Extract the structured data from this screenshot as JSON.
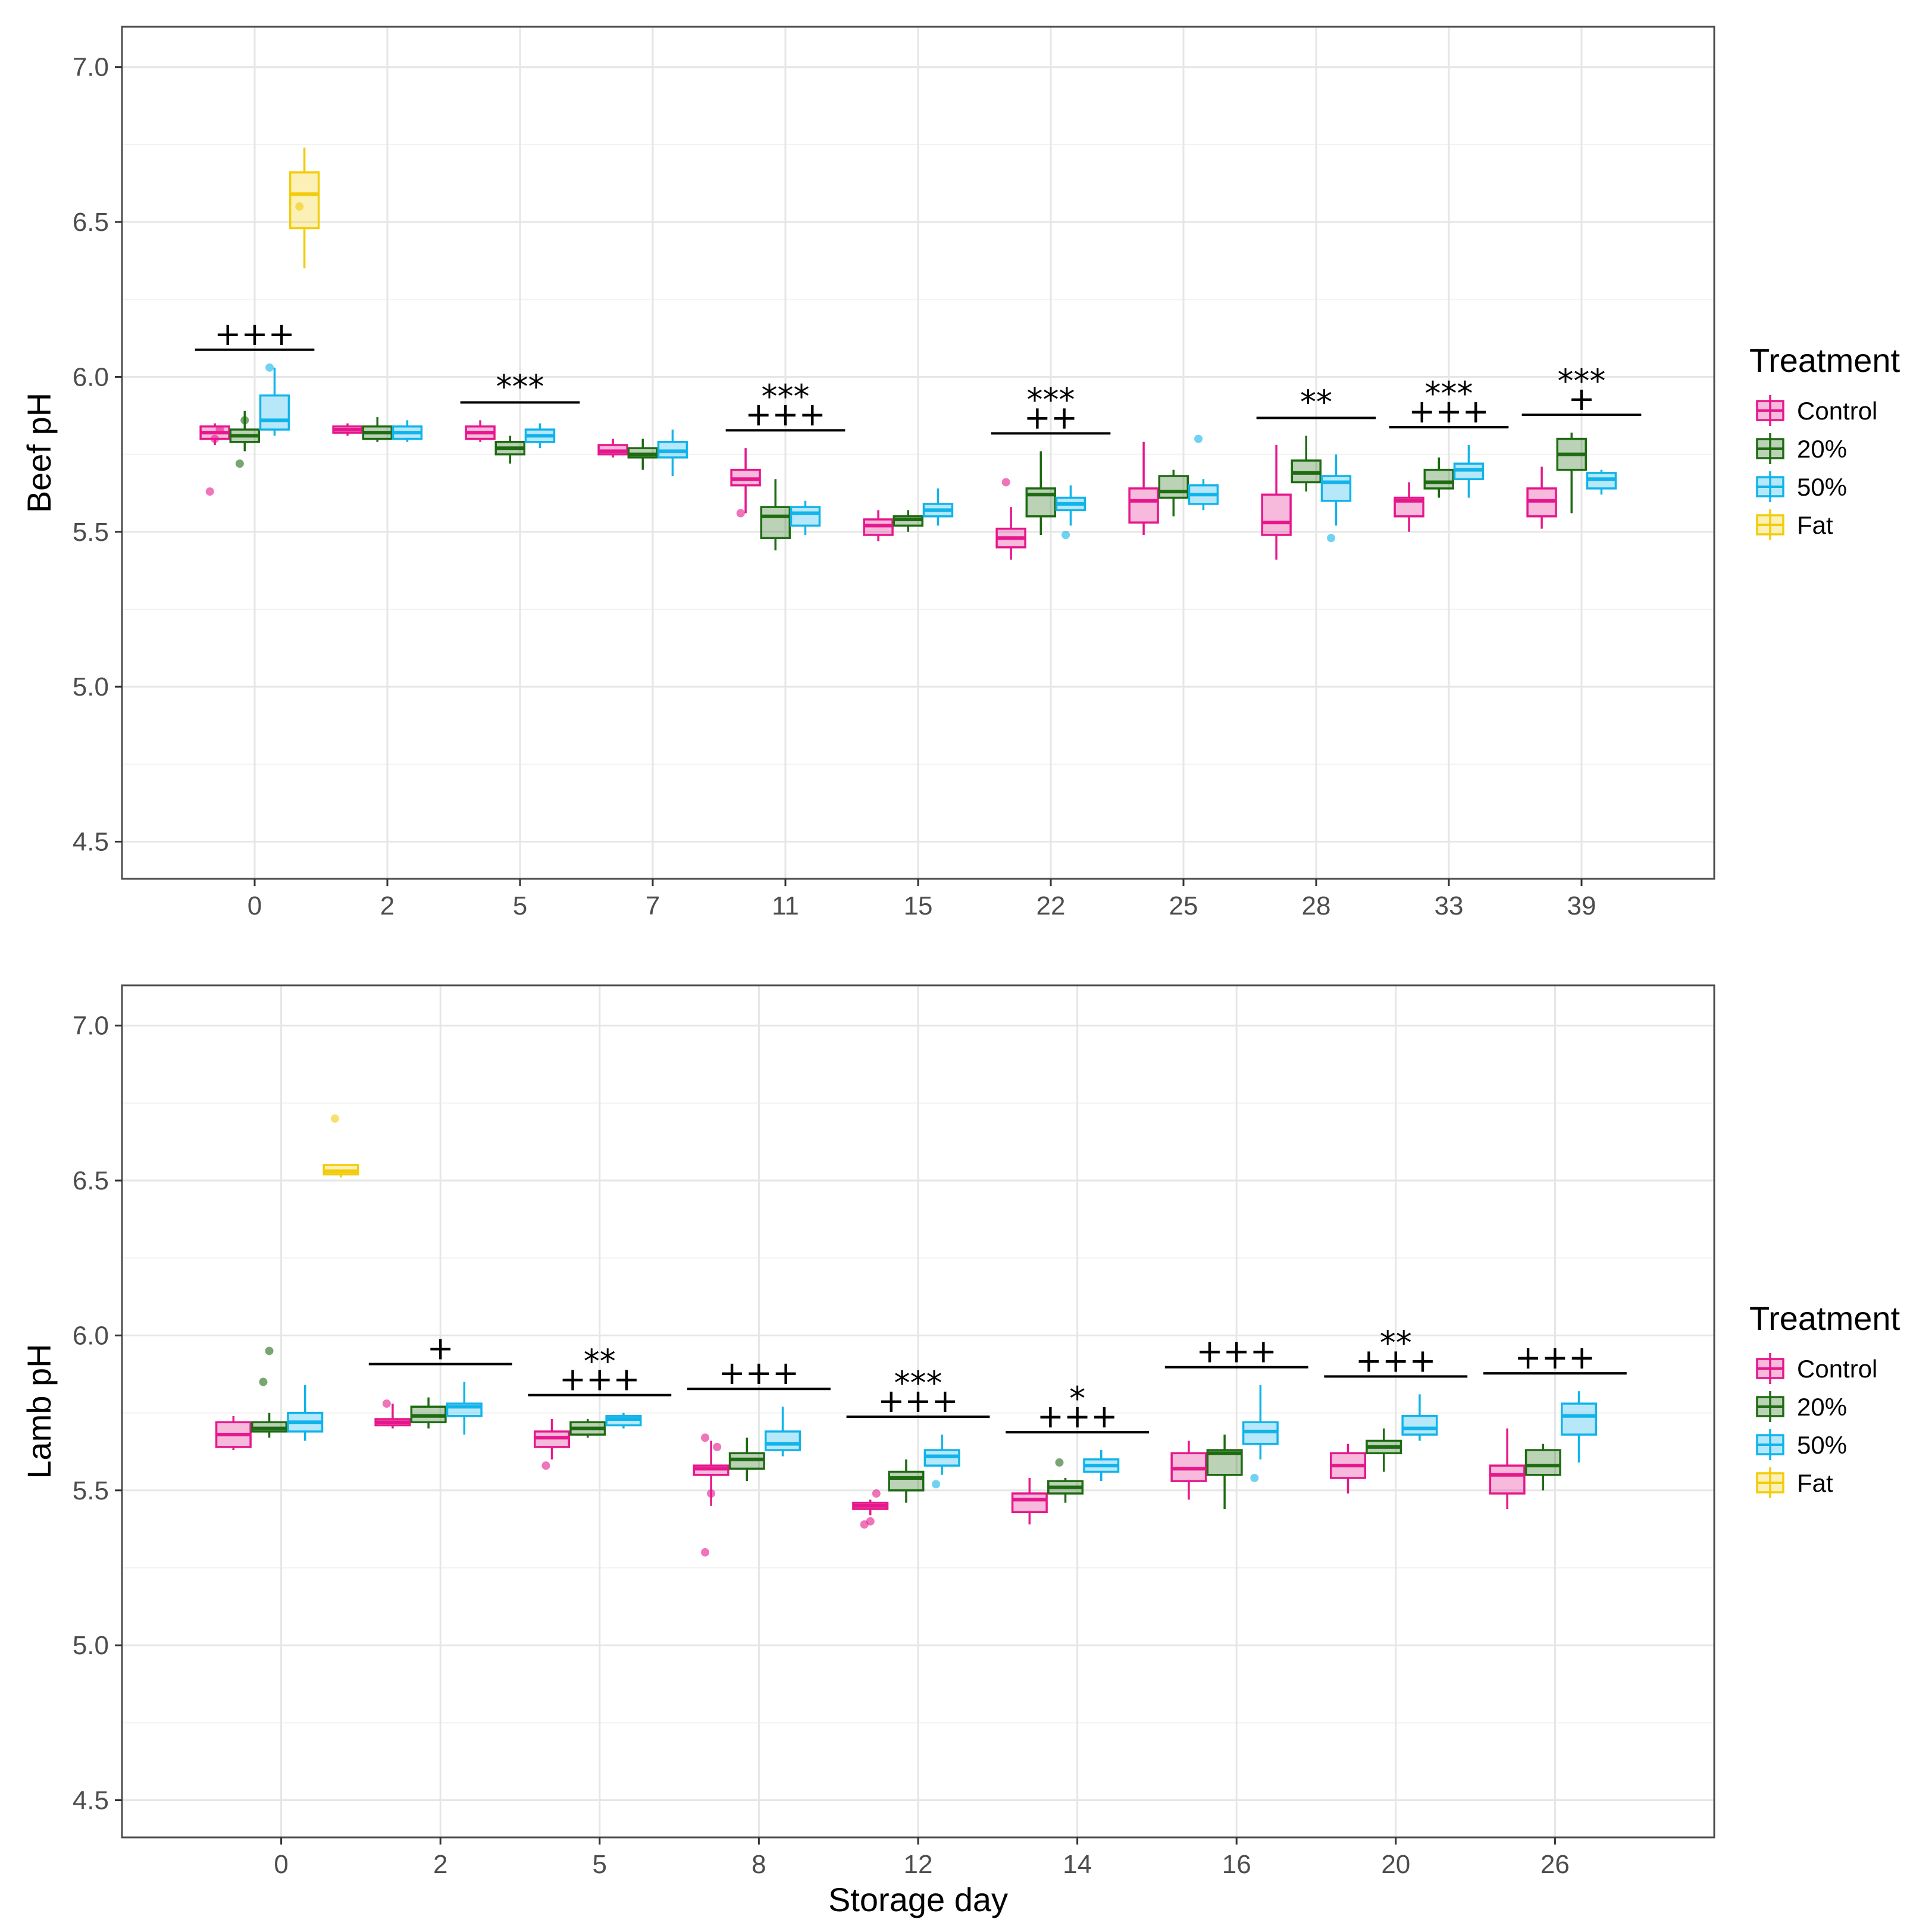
{
  "colors": {
    "Control": "#e6178c",
    "20%": "#1e6b12",
    "50%": "#10b4ea",
    "Fat": "#f2cc0c",
    "grid_major": "#e6e6e6",
    "grid_minor": "#f2f2f2",
    "panel_border": "#4d4d4d"
  },
  "legend": {
    "title": "Treatment",
    "entries": [
      "Control",
      "20%",
      "50%",
      "Fat"
    ]
  },
  "chart_data": [
    {
      "type": "boxplot",
      "ylabel": "Beef pH",
      "xlabel": "",
      "ylim": [
        4.38,
        7.13
      ],
      "yticks": [
        4.5,
        5.0,
        5.5,
        6.0,
        6.5,
        7.0
      ],
      "ytick_labels": [
        "4.5",
        "5.0",
        "5.5",
        "6.0",
        "6.5",
        "7.0"
      ],
      "categories": [
        "0",
        "2",
        "5",
        "7",
        "11",
        "15",
        "22",
        "25",
        "28",
        "33",
        "39"
      ],
      "groups": [
        "Control",
        "20%",
        "50%",
        "Fat"
      ],
      "boxes": [
        {
          "cat": 0,
          "group": "Control",
          "q1": 5.8,
          "med": 5.82,
          "q3": 5.84,
          "lo": 5.78,
          "hi": 5.85,
          "pts": [
            5.63,
            5.8,
            5.83
          ]
        },
        {
          "cat": 0,
          "group": "20%",
          "q1": 5.79,
          "med": 5.81,
          "q3": 5.83,
          "lo": 5.76,
          "hi": 5.89,
          "pts": [
            5.72,
            5.86
          ]
        },
        {
          "cat": 0,
          "group": "50%",
          "q1": 5.83,
          "med": 5.86,
          "q3": 5.94,
          "lo": 5.81,
          "hi": 6.03,
          "pts": [
            6.03
          ]
        },
        {
          "cat": 0,
          "group": "Fat",
          "q1": 6.48,
          "med": 6.59,
          "q3": 6.66,
          "lo": 6.35,
          "hi": 6.74,
          "pts": [
            6.55
          ]
        },
        {
          "cat": 1,
          "group": "Control",
          "q1": 5.82,
          "med": 5.83,
          "q3": 5.84,
          "lo": 5.81,
          "hi": 5.85,
          "pts": []
        },
        {
          "cat": 1,
          "group": "20%",
          "q1": 5.8,
          "med": 5.82,
          "q3": 5.84,
          "lo": 5.79,
          "hi": 5.87,
          "pts": []
        },
        {
          "cat": 1,
          "group": "50%",
          "q1": 5.8,
          "med": 5.82,
          "q3": 5.84,
          "lo": 5.79,
          "hi": 5.86,
          "pts": []
        },
        {
          "cat": 2,
          "group": "Control",
          "q1": 5.8,
          "med": 5.82,
          "q3": 5.84,
          "lo": 5.79,
          "hi": 5.86,
          "pts": []
        },
        {
          "cat": 2,
          "group": "20%",
          "q1": 5.75,
          "med": 5.77,
          "q3": 5.79,
          "lo": 5.72,
          "hi": 5.81,
          "pts": []
        },
        {
          "cat": 2,
          "group": "50%",
          "q1": 5.79,
          "med": 5.81,
          "q3": 5.83,
          "lo": 5.77,
          "hi": 5.85,
          "pts": []
        },
        {
          "cat": 3,
          "group": "Control",
          "q1": 5.75,
          "med": 5.76,
          "q3": 5.78,
          "lo": 5.74,
          "hi": 5.8,
          "pts": []
        },
        {
          "cat": 3,
          "group": "20%",
          "q1": 5.74,
          "med": 5.75,
          "q3": 5.77,
          "lo": 5.7,
          "hi": 5.8,
          "pts": []
        },
        {
          "cat": 3,
          "group": "50%",
          "q1": 5.74,
          "med": 5.76,
          "q3": 5.79,
          "lo": 5.68,
          "hi": 5.83,
          "pts": []
        },
        {
          "cat": 4,
          "group": "Control",
          "q1": 5.65,
          "med": 5.67,
          "q3": 5.7,
          "lo": 5.56,
          "hi": 5.77,
          "pts": [
            5.56
          ]
        },
        {
          "cat": 4,
          "group": "20%",
          "q1": 5.48,
          "med": 5.55,
          "q3": 5.58,
          "lo": 5.44,
          "hi": 5.67,
          "pts": []
        },
        {
          "cat": 4,
          "group": "50%",
          "q1": 5.52,
          "med": 5.56,
          "q3": 5.58,
          "lo": 5.49,
          "hi": 5.6,
          "pts": []
        },
        {
          "cat": 5,
          "group": "Control",
          "q1": 5.49,
          "med": 5.52,
          "q3": 5.54,
          "lo": 5.47,
          "hi": 5.57,
          "pts": []
        },
        {
          "cat": 5,
          "group": "20%",
          "q1": 5.52,
          "med": 5.54,
          "q3": 5.55,
          "lo": 5.5,
          "hi": 5.57,
          "pts": []
        },
        {
          "cat": 5,
          "group": "50%",
          "q1": 5.55,
          "med": 5.57,
          "q3": 5.59,
          "lo": 5.52,
          "hi": 5.64,
          "pts": []
        },
        {
          "cat": 6,
          "group": "Control",
          "q1": 5.45,
          "med": 5.48,
          "q3": 5.51,
          "lo": 5.41,
          "hi": 5.58,
          "pts": [
            5.66
          ]
        },
        {
          "cat": 6,
          "group": "20%",
          "q1": 5.55,
          "med": 5.62,
          "q3": 5.64,
          "lo": 5.49,
          "hi": 5.76,
          "pts": []
        },
        {
          "cat": 6,
          "group": "50%",
          "q1": 5.57,
          "med": 5.59,
          "q3": 5.61,
          "lo": 5.52,
          "hi": 5.65,
          "pts": [
            5.49
          ]
        },
        {
          "cat": 7,
          "group": "Control",
          "q1": 5.53,
          "med": 5.6,
          "q3": 5.64,
          "lo": 5.49,
          "hi": 5.79,
          "pts": []
        },
        {
          "cat": 7,
          "group": "20%",
          "q1": 5.61,
          "med": 5.63,
          "q3": 5.68,
          "lo": 5.55,
          "hi": 5.7,
          "pts": []
        },
        {
          "cat": 7,
          "group": "50%",
          "q1": 5.59,
          "med": 5.62,
          "q3": 5.65,
          "lo": 5.57,
          "hi": 5.67,
          "pts": [
            5.8
          ]
        },
        {
          "cat": 8,
          "group": "Control",
          "q1": 5.49,
          "med": 5.53,
          "q3": 5.62,
          "lo": 5.41,
          "hi": 5.78,
          "pts": []
        },
        {
          "cat": 8,
          "group": "20%",
          "q1": 5.66,
          "med": 5.69,
          "q3": 5.73,
          "lo": 5.63,
          "hi": 5.81,
          "pts": []
        },
        {
          "cat": 8,
          "group": "50%",
          "q1": 5.6,
          "med": 5.66,
          "q3": 5.68,
          "lo": 5.52,
          "hi": 5.75,
          "pts": [
            5.48
          ]
        },
        {
          "cat": 9,
          "group": "Control",
          "q1": 5.55,
          "med": 5.6,
          "q3": 5.61,
          "lo": 5.5,
          "hi": 5.66,
          "pts": []
        },
        {
          "cat": 9,
          "group": "20%",
          "q1": 5.64,
          "med": 5.66,
          "q3": 5.7,
          "lo": 5.61,
          "hi": 5.74,
          "pts": []
        },
        {
          "cat": 9,
          "group": "50%",
          "q1": 5.67,
          "med": 5.7,
          "q3": 5.72,
          "lo": 5.61,
          "hi": 5.78,
          "pts": []
        },
        {
          "cat": 10,
          "group": "Control",
          "q1": 5.55,
          "med": 5.6,
          "q3": 5.64,
          "lo": 5.51,
          "hi": 5.71,
          "pts": []
        },
        {
          "cat": 10,
          "group": "20%",
          "q1": 5.7,
          "med": 5.75,
          "q3": 5.8,
          "lo": 5.56,
          "hi": 5.82,
          "pts": []
        },
        {
          "cat": 10,
          "group": "50%",
          "q1": 5.64,
          "med": 5.67,
          "q3": 5.69,
          "lo": 5.62,
          "hi": 5.7,
          "pts": []
        }
      ],
      "annotations": [
        {
          "cat": 0,
          "top": "",
          "bottom": "+++"
        },
        {
          "cat": 2,
          "top": "",
          "bottom": "***"
        },
        {
          "cat": 4,
          "top": "***",
          "bottom": "+++"
        },
        {
          "cat": 6,
          "top": "***",
          "bottom": "++"
        },
        {
          "cat": 8,
          "top": "",
          "bottom": "**"
        },
        {
          "cat": 9,
          "top": "***",
          "bottom": "+++"
        },
        {
          "cat": 10,
          "top": "***",
          "bottom": "+"
        }
      ]
    },
    {
      "type": "boxplot",
      "ylabel": "Lamb pH",
      "xlabel": "Storage day",
      "ylim": [
        4.38,
        7.13
      ],
      "yticks": [
        4.5,
        5.0,
        5.5,
        6.0,
        6.5,
        7.0
      ],
      "ytick_labels": [
        "4.5",
        "5.0",
        "5.5",
        "6.0",
        "6.5",
        "7.0"
      ],
      "categories": [
        "0",
        "2",
        "5",
        "8",
        "12",
        "14",
        "16",
        "20",
        "26"
      ],
      "groups": [
        "Control",
        "20%",
        "50%",
        "Fat"
      ],
      "boxes": [
        {
          "cat": 0,
          "group": "Control",
          "q1": 5.64,
          "med": 5.68,
          "q3": 5.72,
          "lo": 5.63,
          "hi": 5.74,
          "pts": []
        },
        {
          "cat": 0,
          "group": "20%",
          "q1": 5.69,
          "med": 5.7,
          "q3": 5.72,
          "lo": 5.67,
          "hi": 5.75,
          "pts": [
            5.85,
            5.95
          ]
        },
        {
          "cat": 0,
          "group": "50%",
          "q1": 5.69,
          "med": 5.72,
          "q3": 5.75,
          "lo": 5.66,
          "hi": 5.84,
          "pts": []
        },
        {
          "cat": 0,
          "group": "Fat",
          "q1": 6.52,
          "med": 6.53,
          "q3": 6.55,
          "lo": 6.51,
          "hi": 6.55,
          "pts": [
            6.7
          ]
        },
        {
          "cat": 1,
          "group": "Control",
          "q1": 5.71,
          "med": 5.72,
          "q3": 5.73,
          "lo": 5.7,
          "hi": 5.78,
          "pts": [
            5.78
          ]
        },
        {
          "cat": 1,
          "group": "20%",
          "q1": 5.72,
          "med": 5.74,
          "q3": 5.77,
          "lo": 5.7,
          "hi": 5.8,
          "pts": []
        },
        {
          "cat": 1,
          "group": "50%",
          "q1": 5.74,
          "med": 5.77,
          "q3": 5.78,
          "lo": 5.68,
          "hi": 5.85,
          "pts": []
        },
        {
          "cat": 2,
          "group": "Control",
          "q1": 5.64,
          "med": 5.67,
          "q3": 5.69,
          "lo": 5.6,
          "hi": 5.73,
          "pts": [
            5.58
          ]
        },
        {
          "cat": 2,
          "group": "20%",
          "q1": 5.68,
          "med": 5.7,
          "q3": 5.72,
          "lo": 5.67,
          "hi": 5.73,
          "pts": []
        },
        {
          "cat": 2,
          "group": "50%",
          "q1": 5.71,
          "med": 5.73,
          "q3": 5.74,
          "lo": 5.7,
          "hi": 5.75,
          "pts": []
        },
        {
          "cat": 3,
          "group": "Control",
          "q1": 5.55,
          "med": 5.57,
          "q3": 5.58,
          "lo": 5.45,
          "hi": 5.66,
          "pts": [
            5.3,
            5.49,
            5.64,
            5.67
          ]
        },
        {
          "cat": 3,
          "group": "20%",
          "q1": 5.57,
          "med": 5.6,
          "q3": 5.62,
          "lo": 5.53,
          "hi": 5.67,
          "pts": []
        },
        {
          "cat": 3,
          "group": "50%",
          "q1": 5.63,
          "med": 5.65,
          "q3": 5.69,
          "lo": 5.61,
          "hi": 5.77,
          "pts": []
        },
        {
          "cat": 4,
          "group": "Control",
          "q1": 5.44,
          "med": 5.45,
          "q3": 5.46,
          "lo": 5.42,
          "hi": 5.47,
          "pts": [
            5.39,
            5.4,
            5.49
          ]
        },
        {
          "cat": 4,
          "group": "20%",
          "q1": 5.5,
          "med": 5.54,
          "q3": 5.56,
          "lo": 5.46,
          "hi": 5.6,
          "pts": []
        },
        {
          "cat": 4,
          "group": "50%",
          "q1": 5.58,
          "med": 5.61,
          "q3": 5.63,
          "lo": 5.55,
          "hi": 5.68,
          "pts": [
            5.52
          ]
        },
        {
          "cat": 5,
          "group": "Control",
          "q1": 5.43,
          "med": 5.47,
          "q3": 5.49,
          "lo": 5.39,
          "hi": 5.54,
          "pts": []
        },
        {
          "cat": 5,
          "group": "20%",
          "q1": 5.49,
          "med": 5.51,
          "q3": 5.53,
          "lo": 5.46,
          "hi": 5.54,
          "pts": [
            5.59
          ]
        },
        {
          "cat": 5,
          "group": "50%",
          "q1": 5.56,
          "med": 5.58,
          "q3": 5.6,
          "lo": 5.53,
          "hi": 5.63,
          "pts": []
        },
        {
          "cat": 6,
          "group": "Control",
          "q1": 5.53,
          "med": 5.57,
          "q3": 5.62,
          "lo": 5.47,
          "hi": 5.66,
          "pts": []
        },
        {
          "cat": 6,
          "group": "20%",
          "q1": 5.55,
          "med": 5.62,
          "q3": 5.63,
          "lo": 5.44,
          "hi": 5.68,
          "pts": []
        },
        {
          "cat": 6,
          "group": "50%",
          "q1": 5.65,
          "med": 5.69,
          "q3": 5.72,
          "lo": 5.6,
          "hi": 5.84,
          "pts": [
            5.54
          ]
        },
        {
          "cat": 7,
          "group": "Control",
          "q1": 5.54,
          "med": 5.58,
          "q3": 5.62,
          "lo": 5.49,
          "hi": 5.65,
          "pts": []
        },
        {
          "cat": 7,
          "group": "20%",
          "q1": 5.62,
          "med": 5.64,
          "q3": 5.66,
          "lo": 5.56,
          "hi": 5.7,
          "pts": []
        },
        {
          "cat": 7,
          "group": "50%",
          "q1": 5.68,
          "med": 5.7,
          "q3": 5.74,
          "lo": 5.66,
          "hi": 5.81,
          "pts": []
        },
        {
          "cat": 8,
          "group": "Control",
          "q1": 5.49,
          "med": 5.55,
          "q3": 5.58,
          "lo": 5.44,
          "hi": 5.7,
          "pts": []
        },
        {
          "cat": 8,
          "group": "20%",
          "q1": 5.55,
          "med": 5.58,
          "q3": 5.63,
          "lo": 5.5,
          "hi": 5.65,
          "pts": []
        },
        {
          "cat": 8,
          "group": "50%",
          "q1": 5.68,
          "med": 5.74,
          "q3": 5.78,
          "lo": 5.59,
          "hi": 5.82,
          "pts": []
        }
      ],
      "annotations": [
        {
          "cat": 1,
          "top": "",
          "bottom": "+"
        },
        {
          "cat": 2,
          "top": "**",
          "bottom": "+++"
        },
        {
          "cat": 3,
          "top": "",
          "bottom": "+++"
        },
        {
          "cat": 4,
          "top": "***",
          "bottom": "+++"
        },
        {
          "cat": 5,
          "top": "*",
          "bottom": "+++"
        },
        {
          "cat": 6,
          "top": "",
          "bottom": "+++"
        },
        {
          "cat": 7,
          "top": "**",
          "bottom": "+++"
        },
        {
          "cat": 8,
          "top": "",
          "bottom": "+++"
        }
      ]
    }
  ]
}
